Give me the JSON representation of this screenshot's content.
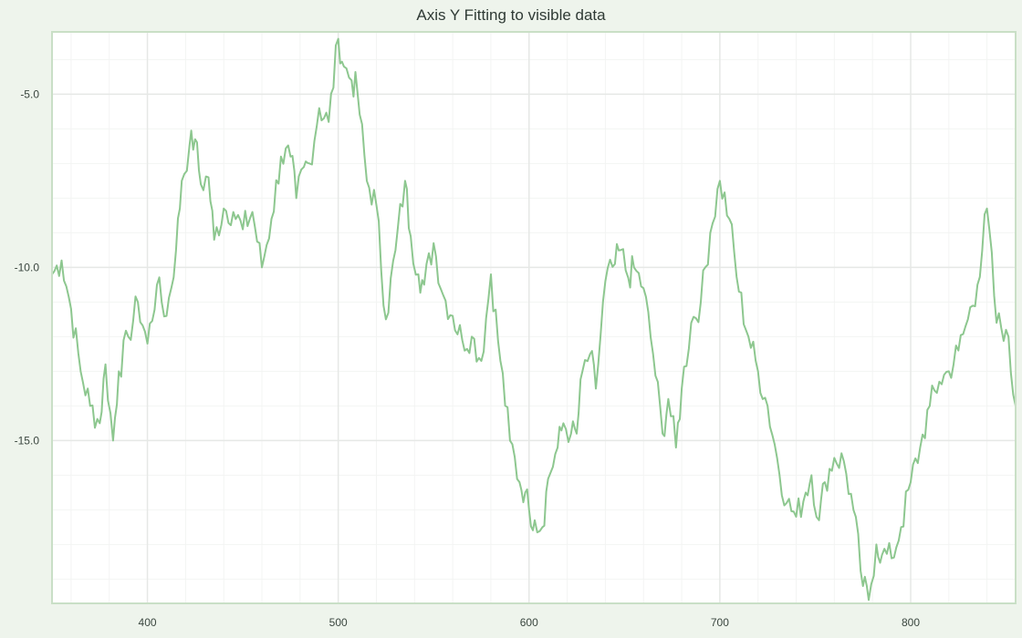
{
  "chart_data": {
    "type": "line",
    "title": "Axis Y Fitting to visible data",
    "xlabel": "",
    "ylabel": "",
    "xlim": [
      350,
      855
    ],
    "ylim": [
      -19.7,
      -3.2
    ],
    "x_ticks": [
      400,
      500,
      600,
      700,
      800
    ],
    "y_ticks": [
      -5.0,
      -10.0,
      -15.0
    ],
    "x_tick_labels": [
      "400",
      "500",
      "600",
      "700",
      "800"
    ],
    "y_tick_labels": [
      "-5.0",
      "-10.0",
      "-15.0"
    ],
    "grid": true,
    "legend": "none",
    "colors": {
      "line": "#8dc78f",
      "background": "#eef4ec",
      "plot_area": "#ffffff",
      "frame": "#c9dfc6",
      "grid_major": "#e6e8e6",
      "grid_minor": "#f3f4f3"
    },
    "series": [
      {
        "x": [
          350,
          355,
          360,
          365,
          370,
          375,
          378,
          382,
          385,
          390,
          395,
          400,
          405,
          410,
          415,
          418,
          422,
          425,
          428,
          432,
          435,
          440,
          445,
          450,
          455,
          460,
          465,
          470,
          475,
          478,
          482,
          485,
          490,
          495,
          500,
          503,
          507,
          510,
          515,
          520,
          525,
          530,
          535,
          538,
          542,
          545,
          550,
          555,
          560,
          565,
          570,
          575,
          580,
          585,
          590,
          595,
          598,
          600,
          603,
          607,
          610,
          615,
          618,
          622,
          625,
          628,
          632,
          635,
          640,
          645,
          648,
          652,
          655,
          660,
          665,
          670,
          673,
          677,
          680,
          685,
          690,
          695,
          700,
          705,
          710,
          715,
          720,
          725,
          730,
          735,
          740,
          745,
          748,
          752,
          755,
          760,
          765,
          770,
          775,
          778,
          782,
          785,
          790,
          795,
          800,
          805,
          810,
          815,
          820,
          825,
          830,
          835,
          840,
          845,
          850,
          855
        ],
        "y": [
          -10.2,
          -9.8,
          -11.2,
          -13.0,
          -14.0,
          -14.5,
          -12.8,
          -15.0,
          -13.0,
          -12.0,
          -11.0,
          -12.2,
          -10.5,
          -11.4,
          -9.5,
          -7.5,
          -6.5,
          -6.3,
          -7.6,
          -7.4,
          -9.2,
          -8.3,
          -8.4,
          -8.9,
          -8.4,
          -10.0,
          -8.6,
          -6.8,
          -6.8,
          -8.0,
          -7.1,
          -7.0,
          -5.4,
          -5.8,
          -3.4,
          -4.2,
          -4.6,
          -4.9,
          -7.5,
          -8.2,
          -11.5,
          -9.5,
          -7.5,
          -9.1,
          -10.2,
          -10.5,
          -9.3,
          -10.8,
          -11.4,
          -12.1,
          -12.0,
          -12.7,
          -10.2,
          -12.7,
          -15.0,
          -16.2,
          -16.5,
          -17.0,
          -17.3,
          -17.5,
          -16.1,
          -15.2,
          -14.5,
          -14.8,
          -14.8,
          -13.0,
          -12.5,
          -13.5,
          -10.4,
          -9.9,
          -9.5,
          -10.3,
          -10.0,
          -10.6,
          -12.5,
          -14.8,
          -13.8,
          -15.2,
          -13.5,
          -11.6,
          -11.0,
          -9.0,
          -7.5,
          -8.6,
          -10.7,
          -12.0,
          -13.0,
          -14.0,
          -15.5,
          -16.8,
          -17.2,
          -16.5,
          -16.0,
          -17.3,
          -16.2,
          -15.5,
          -15.6,
          -17.0,
          -19.2,
          -19.6,
          -18.0,
          -18.3,
          -18.4,
          -17.5,
          -16.2,
          -15.2,
          -14.0,
          -13.3,
          -13.0,
          -12.4,
          -11.5,
          -10.5,
          -8.3,
          -11.6,
          -11.8,
          -14.0
        ]
      }
    ]
  }
}
